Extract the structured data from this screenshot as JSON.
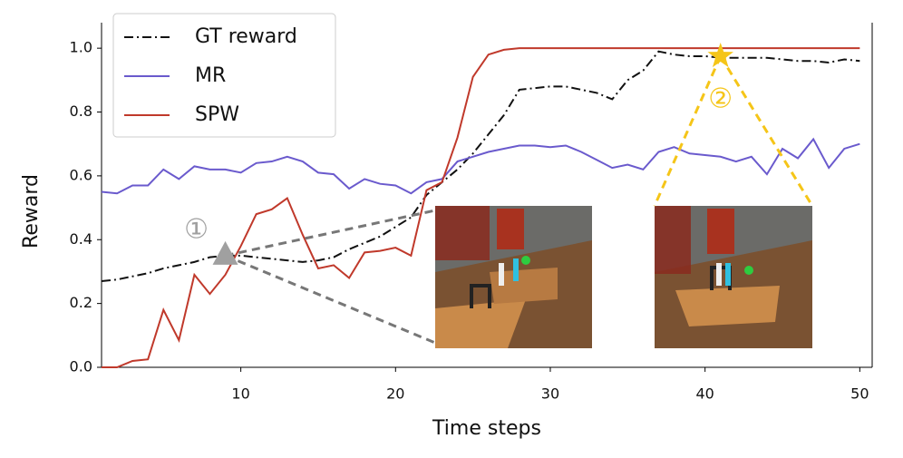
{
  "chart_data": {
    "type": "line",
    "x_label": "Time steps",
    "y_label": "Reward",
    "x": [
      1,
      2,
      3,
      4,
      5,
      6,
      7,
      8,
      9,
      10,
      11,
      12,
      13,
      14,
      15,
      16,
      17,
      18,
      19,
      20,
      21,
      22,
      23,
      24,
      25,
      26,
      27,
      28,
      29,
      30,
      31,
      32,
      33,
      34,
      35,
      36,
      37,
      38,
      39,
      40,
      41,
      42,
      43,
      44,
      45,
      46,
      47,
      48,
      49,
      50
    ],
    "series": [
      {
        "name": "GT reward",
        "color": "#111111",
        "dash": "dashdot",
        "values": [
          0.27,
          0.275,
          0.285,
          0.295,
          0.31,
          0.32,
          0.33,
          0.345,
          0.35,
          0.35,
          0.345,
          0.34,
          0.335,
          0.33,
          0.335,
          0.345,
          0.37,
          0.39,
          0.41,
          0.44,
          0.47,
          0.54,
          0.58,
          0.62,
          0.67,
          0.73,
          0.79,
          0.87,
          0.875,
          0.88,
          0.88,
          0.87,
          0.86,
          0.84,
          0.9,
          0.93,
          0.99,
          0.98,
          0.975,
          0.975,
          0.97,
          0.97,
          0.97,
          0.97,
          0.965,
          0.96,
          0.96,
          0.955,
          0.965,
          0.96
        ]
      },
      {
        "name": "MR",
        "color": "#6a5acd",
        "dash": "solid",
        "values": [
          0.55,
          0.545,
          0.57,
          0.57,
          0.62,
          0.59,
          0.63,
          0.62,
          0.62,
          0.61,
          0.64,
          0.645,
          0.66,
          0.645,
          0.61,
          0.605,
          0.56,
          0.59,
          0.575,
          0.57,
          0.545,
          0.58,
          0.59,
          0.645,
          0.66,
          0.675,
          0.685,
          0.695,
          0.695,
          0.69,
          0.695,
          0.675,
          0.65,
          0.625,
          0.635,
          0.62,
          0.675,
          0.69,
          0.67,
          0.665,
          0.66,
          0.645,
          0.66,
          0.605,
          0.685,
          0.655,
          0.715,
          0.625,
          0.685,
          0.7
        ]
      },
      {
        "name": "SPW",
        "color": "#c0392b",
        "dash": "solid",
        "values": [
          0,
          0,
          0.02,
          0.025,
          0.18,
          0.085,
          0.29,
          0.23,
          0.29,
          0.38,
          0.48,
          0.495,
          0.53,
          0.415,
          0.31,
          0.32,
          0.28,
          0.36,
          0.365,
          0.375,
          0.35,
          0.555,
          0.58,
          0.72,
          0.91,
          0.98,
          0.995,
          1,
          1,
          1,
          1,
          1,
          1,
          1,
          1,
          1,
          1,
          1,
          1,
          1,
          1,
          1,
          1,
          1,
          1,
          1,
          1,
          1,
          1,
          1
        ]
      }
    ],
    "xlim": [
      1,
      50.8
    ],
    "ylim": [
      0,
      1.08
    ],
    "xticks": [
      10,
      20,
      30,
      40,
      50
    ],
    "yticks": [
      {
        "value": 0,
        "label": "0.0"
      },
      {
        "value": 0.2,
        "label": "0.2"
      },
      {
        "value": 0.4,
        "label": "0.4"
      },
      {
        "value": 0.6,
        "label": "0.6"
      },
      {
        "value": 0.8,
        "label": "0.8"
      },
      {
        "value": 1,
        "label": "1.0"
      }
    ],
    "legend": "upper left",
    "annotations": [
      {
        "text": "①",
        "x": 9,
        "y": 0.35,
        "marker": "triangle",
        "color": "#a0a0a0"
      },
      {
        "text": "②",
        "x": 41,
        "y": 0.975,
        "marker": "star",
        "color": "#f5c518"
      }
    ]
  }
}
